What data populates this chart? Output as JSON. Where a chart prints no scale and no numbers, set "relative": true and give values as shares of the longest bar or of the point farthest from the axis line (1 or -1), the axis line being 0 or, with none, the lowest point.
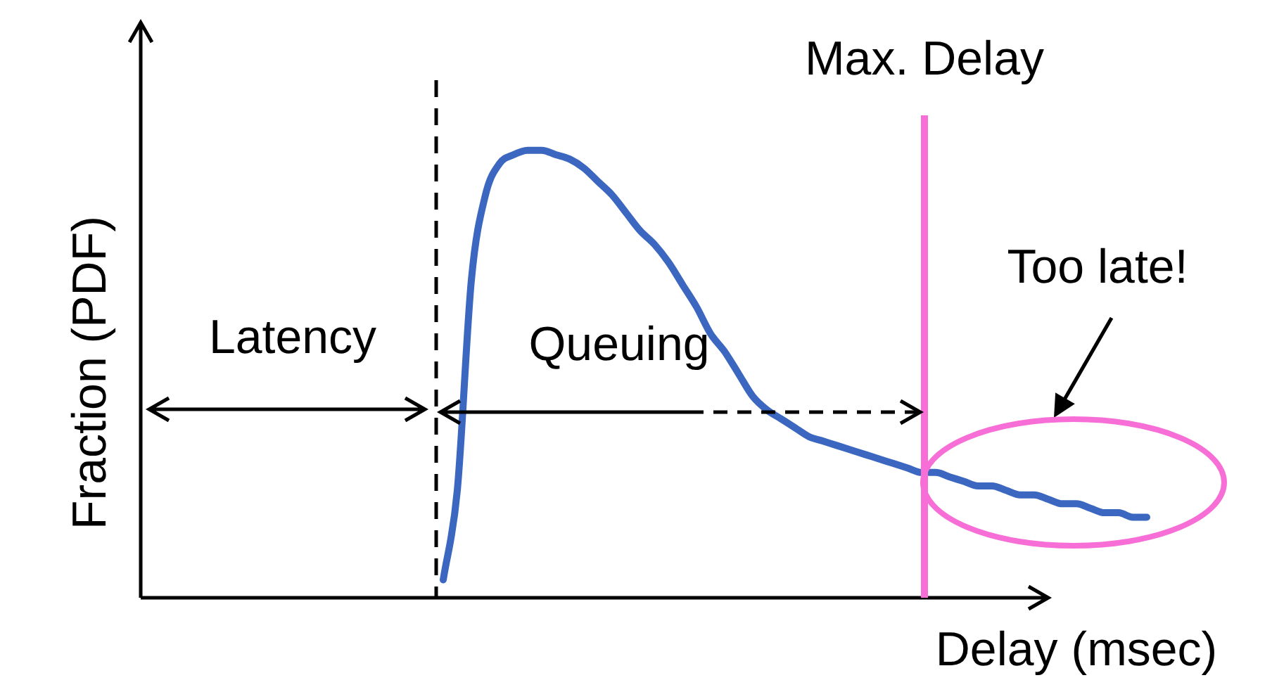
{
  "chart_data": {
    "type": "line",
    "relative": true,
    "xlabel": "Delay (msec)",
    "ylabel": "Fraction (PDF)",
    "marker": "none",
    "line_style": "solid",
    "categories": [
      null,
      null,
      null,
      null,
      null,
      null,
      null,
      null,
      null,
      null,
      null,
      null,
      null,
      null,
      null,
      null,
      null,
      null,
      null,
      null,
      null,
      null,
      null,
      null,
      null,
      null,
      null,
      null,
      null,
      null,
      null,
      null,
      null,
      null,
      null,
      null,
      null,
      null,
      null,
      null,
      null,
      null,
      null,
      null,
      null,
      null,
      null,
      null,
      null,
      null,
      null,
      null,
      null,
      null,
      null,
      null,
      null,
      null,
      null,
      null,
      null,
      null,
      null,
      null,
      null,
      null,
      null,
      null,
      null,
      null,
      null,
      null
    ],
    "series": [
      {
        "color": "#3b67c0",
        "values": [
          null,
          null,
          null,
          null,
          null,
          null,
          null,
          null,
          null,
          null,
          null,
          null,
          null,
          null,
          null,
          null,
          null,
          null,
          null,
          null,
          null,
          0.04,
          0.24,
          0.71,
          0.9,
          0.97,
          0.99,
          1.0,
          1.0,
          0.99,
          0.98,
          0.96,
          0.93,
          0.9,
          0.86,
          0.82,
          0.79,
          0.75,
          0.7,
          0.65,
          0.59,
          0.55,
          0.5,
          0.45,
          0.42,
          0.4,
          0.38,
          0.36,
          0.35,
          0.34,
          0.33,
          0.32,
          0.31,
          0.3,
          0.29,
          0.28,
          0.28,
          0.27,
          0.26,
          0.25,
          0.25,
          0.24,
          0.23,
          0.23,
          0.22,
          0.21,
          0.21,
          0.2,
          0.19,
          0.19,
          0.18,
          0.18
        ]
      }
    ],
    "annotations": [
      "Latency",
      "Queuing",
      "Too late!",
      "Max. Delay"
    ]
  }
}
